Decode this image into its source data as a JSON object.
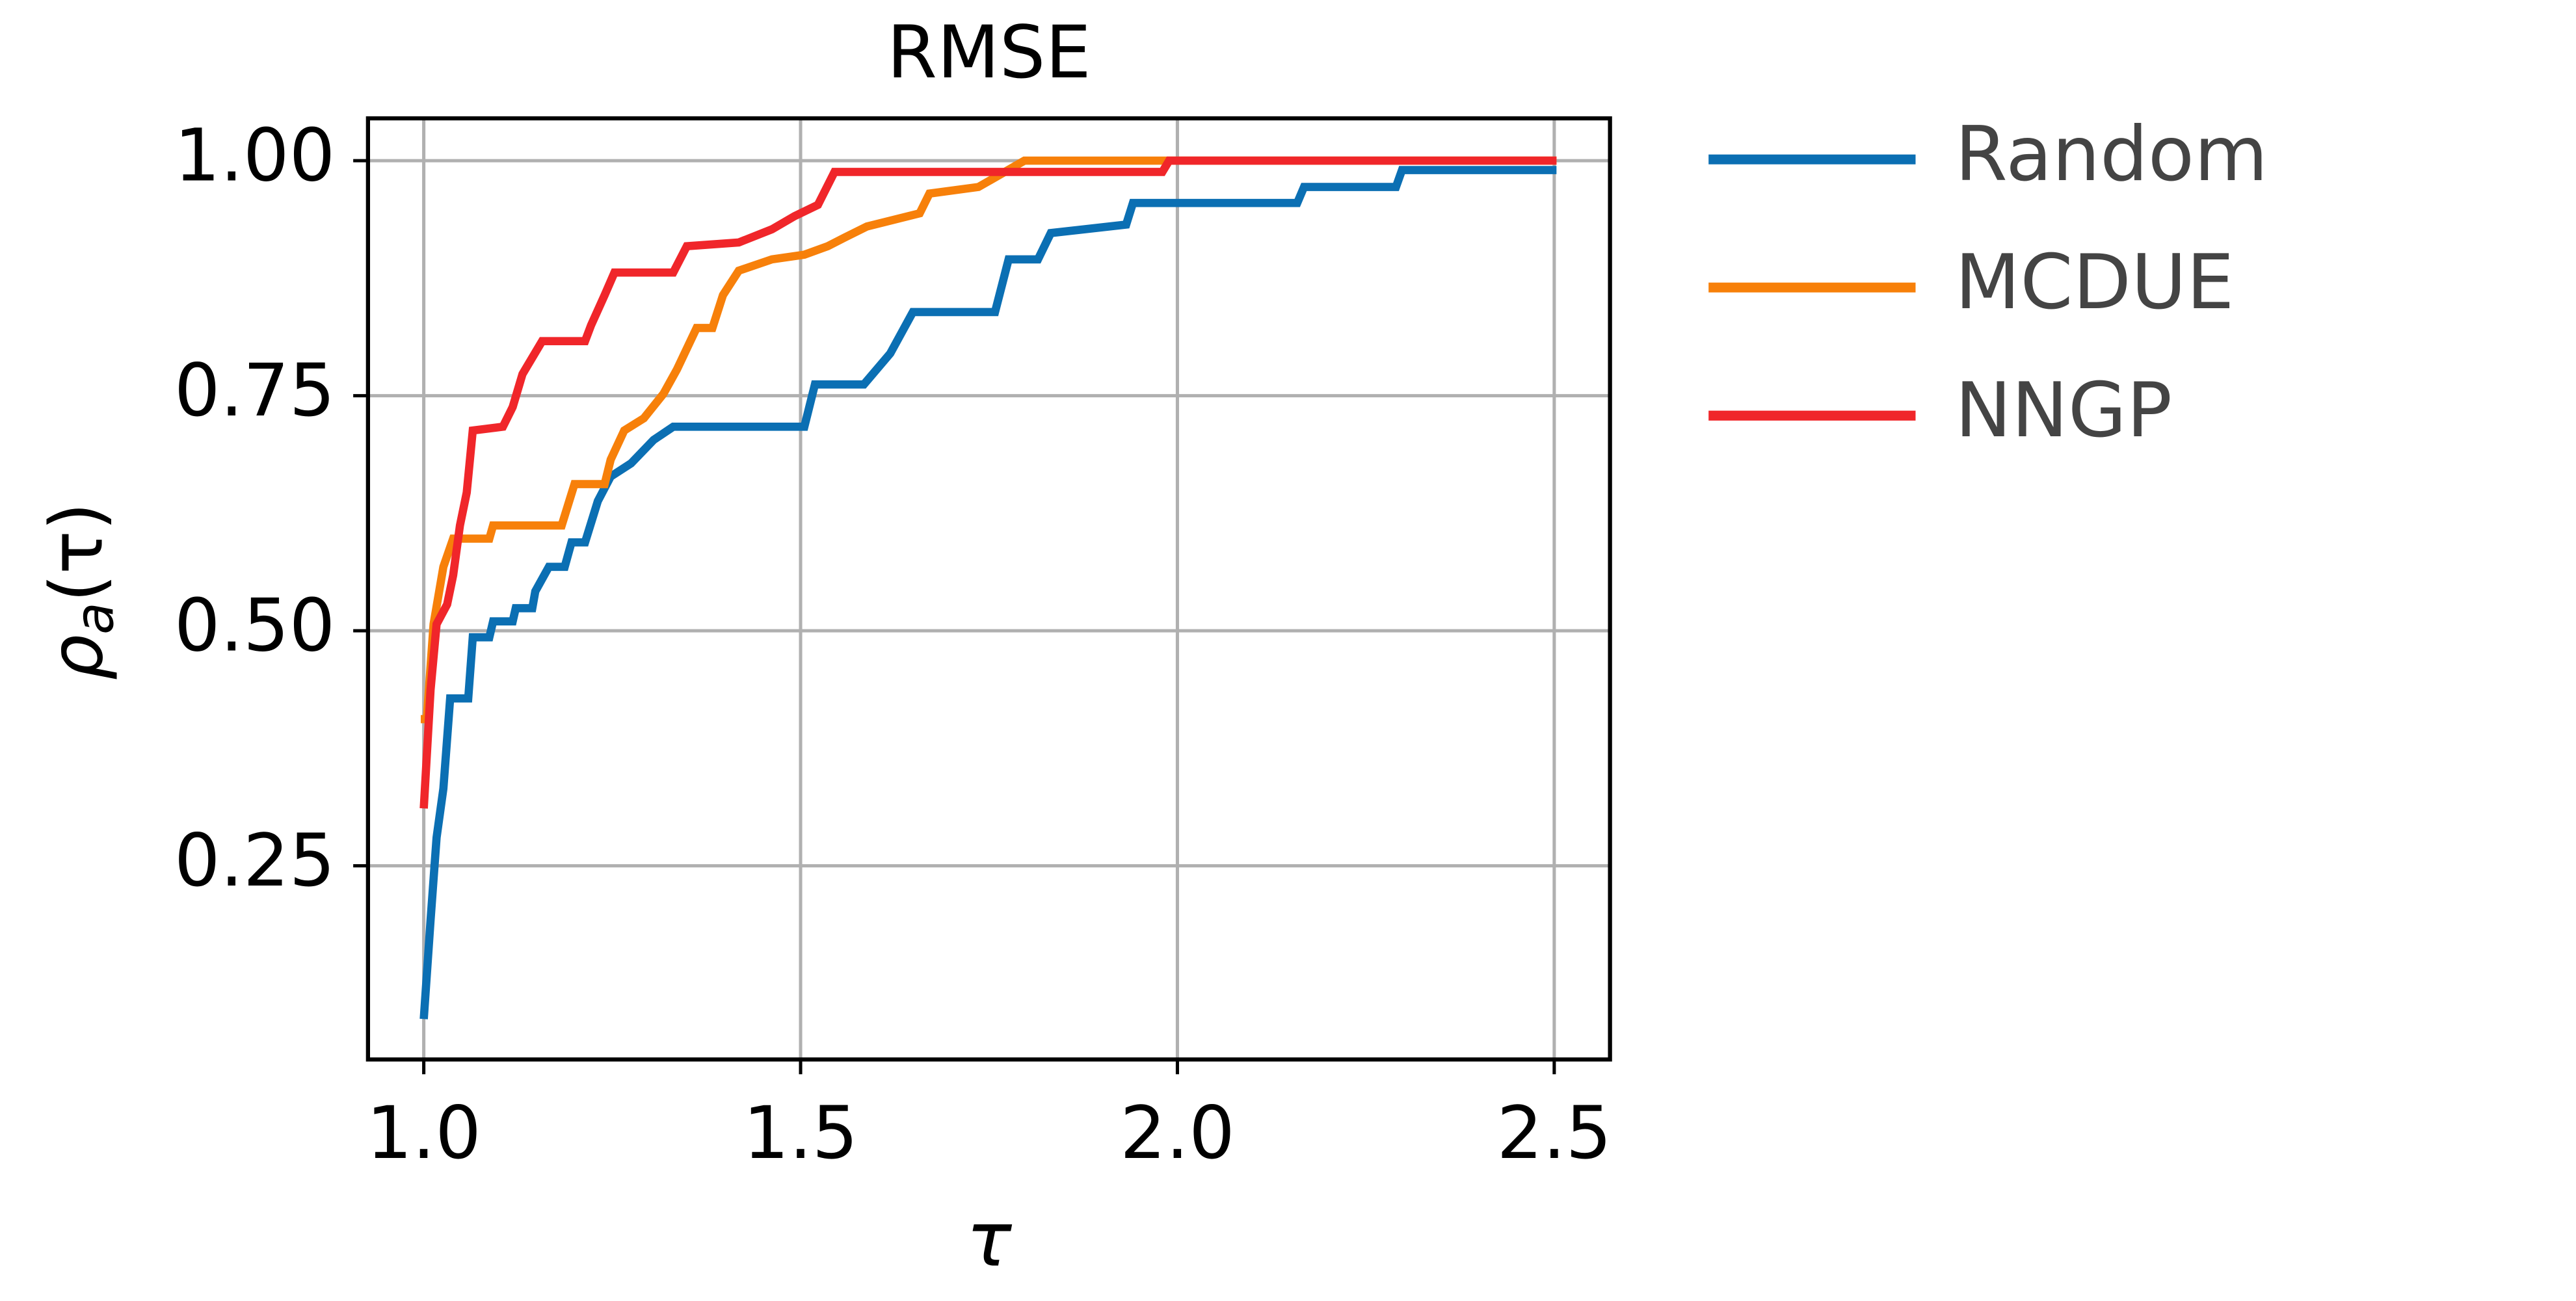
{
  "chart_data": {
    "type": "line",
    "title": "RMSE",
    "xlabel": "τ",
    "ylabel": {
      "base": "ρ",
      "sub": "a",
      "arg": "(τ)"
    },
    "xlim": [
      0.926,
      2.574
    ],
    "ylim": [
      0.044,
      1.045
    ],
    "xticks": [
      {
        "value": 1.0,
        "label": "1.0"
      },
      1.5,
      {
        "value": 2.0,
        "label": "2.0"
      },
      2.5
    ],
    "yticks": [
      {
        "value": 0.25,
        "label": "0.25"
      },
      {
        "value": 0.5,
        "label": "0.50"
      },
      {
        "value": 0.75,
        "label": "0.75"
      },
      {
        "value": 1.0,
        "label": "1.00"
      }
    ],
    "grid": true,
    "legend": "outside-right",
    "series": [
      {
        "name": "Random",
        "color": "#0b6fb3",
        "x": [
          1.0,
          1.009,
          1.017,
          1.026,
          1.035,
          1.059,
          1.065,
          1.087,
          1.092,
          1.118,
          1.122,
          1.144,
          1.148,
          1.166,
          1.187,
          1.196,
          1.214,
          1.231,
          1.248,
          1.275,
          1.305,
          1.331,
          1.505,
          1.519,
          1.584,
          1.619,
          1.649,
          1.758,
          1.776,
          1.815,
          1.832,
          1.932,
          1.941,
          2.159,
          2.168,
          2.29,
          2.298,
          2.503
        ],
        "values": [
          0.087,
          0.192,
          0.28,
          0.332,
          0.428,
          0.428,
          0.493,
          0.493,
          0.51,
          0.51,
          0.524,
          0.524,
          0.542,
          0.568,
          0.568,
          0.594,
          0.594,
          0.638,
          0.664,
          0.678,
          0.703,
          0.717,
          0.717,
          0.762,
          0.762,
          0.795,
          0.839,
          0.839,
          0.895,
          0.895,
          0.923,
          0.932,
          0.955,
          0.955,
          0.972,
          0.972,
          0.99,
          0.99
        ]
      },
      {
        "name": "MCDUE",
        "color": "#f7800a",
        "x": [
          0.996,
          1.004,
          1.013,
          1.026,
          1.039,
          1.087,
          1.092,
          1.183,
          1.2,
          1.24,
          1.248,
          1.266,
          1.292,
          1.318,
          1.336,
          1.362,
          1.383,
          1.397,
          1.418,
          1.462,
          1.505,
          1.536,
          1.558,
          1.588,
          1.658,
          1.671,
          1.736,
          1.797,
          2.503
        ],
        "values": [
          0.406,
          0.406,
          0.507,
          0.568,
          0.598,
          0.598,
          0.612,
          0.612,
          0.656,
          0.656,
          0.682,
          0.713,
          0.726,
          0.752,
          0.778,
          0.822,
          0.822,
          0.857,
          0.883,
          0.895,
          0.9,
          0.909,
          0.918,
          0.93,
          0.944,
          0.965,
          0.972,
          1.0,
          1.0
        ]
      },
      {
        "name": "NNGP",
        "color": "#f0262a",
        "x": [
          1.0,
          1.009,
          1.017,
          1.031,
          1.039,
          1.048,
          1.057,
          1.065,
          1.105,
          1.118,
          1.131,
          1.157,
          1.214,
          1.222,
          1.24,
          1.253,
          1.331,
          1.349,
          1.418,
          1.462,
          1.492,
          1.523,
          1.545,
          1.98,
          1.989,
          2.503
        ],
        "values": [
          0.311,
          0.437,
          0.507,
          0.528,
          0.559,
          0.612,
          0.647,
          0.713,
          0.717,
          0.738,
          0.773,
          0.808,
          0.808,
          0.825,
          0.857,
          0.881,
          0.881,
          0.909,
          0.913,
          0.927,
          0.941,
          0.953,
          0.988,
          0.988,
          1.0,
          1.0
        ]
      }
    ]
  }
}
